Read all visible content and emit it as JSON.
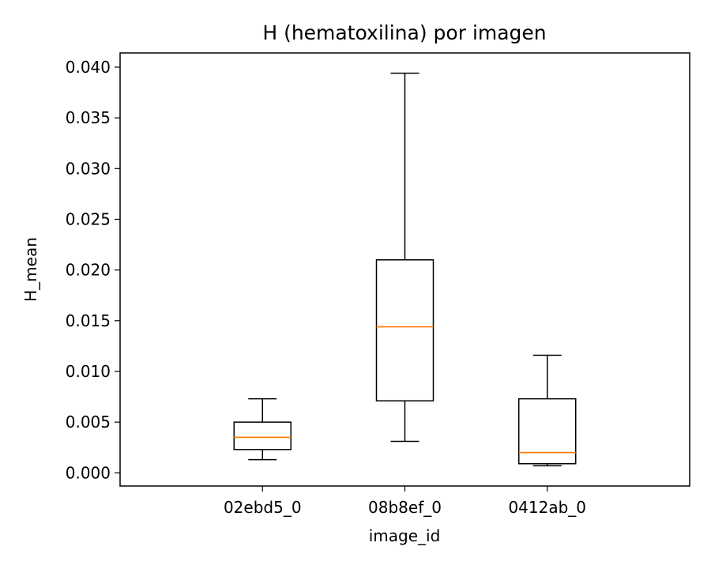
{
  "chart_data": {
    "type": "boxplot",
    "title": "H (hematoxilina) por imagen",
    "xlabel": "image_id",
    "ylabel": "H_mean",
    "categories": [
      "02ebd5_0",
      "08b8ef_0",
      "0412ab_0"
    ],
    "ylim": [
      -0.0013,
      0.0414
    ],
    "yticks": [
      0.0,
      0.005,
      0.01,
      0.015,
      0.02,
      0.025,
      0.03,
      0.035,
      0.04
    ],
    "ytick_labels": [
      "0.000",
      "0.005",
      "0.010",
      "0.015",
      "0.020",
      "0.025",
      "0.030",
      "0.035",
      "0.040"
    ],
    "grid": false,
    "boxes": [
      {
        "whisker_low": 0.0013,
        "q1": 0.0023,
        "median": 0.0035,
        "q3": 0.005,
        "whisker_high": 0.0073
      },
      {
        "whisker_low": 0.0031,
        "q1": 0.0071,
        "median": 0.0144,
        "q3": 0.021,
        "whisker_high": 0.0394
      },
      {
        "whisker_low": 0.0007,
        "q1": 0.0009,
        "median": 0.002,
        "q3": 0.0073,
        "whisker_high": 0.0116
      }
    ],
    "colors": {
      "box": "#000000",
      "median": "#ff7f0e"
    }
  }
}
